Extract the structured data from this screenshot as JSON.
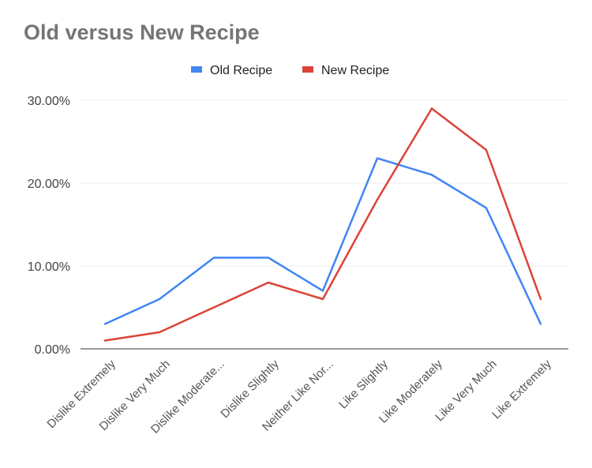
{
  "chart_data": {
    "type": "line",
    "title": "Old versus New Recipe",
    "categories": [
      "Dislike Extremely",
      "Dislike Very Much",
      "Dislike Moderate...",
      "Dislike Slightly",
      "Neither Like Nor...",
      "Like Slightly",
      "Like Moderately",
      "Like Very Much",
      "Like Extremely"
    ],
    "series": [
      {
        "name": "Old Recipe",
        "color": "#4285f4",
        "values": [
          3,
          6,
          11,
          11,
          7,
          23,
          21,
          17,
          3
        ]
      },
      {
        "name": "New Recipe",
        "color": "#db4437",
        "values": [
          1,
          2,
          5,
          8,
          6,
          18,
          29,
          24,
          6
        ]
      }
    ],
    "yticks": [
      {
        "value": 0,
        "label": "0.00%"
      },
      {
        "value": 10,
        "label": "10.00%"
      },
      {
        "value": 20,
        "label": "20.00%"
      },
      {
        "value": 30,
        "label": "30.00%"
      }
    ],
    "ylim": [
      0,
      30
    ],
    "xlabel": "",
    "ylabel": "",
    "grid": true,
    "legend_position": "top"
  }
}
